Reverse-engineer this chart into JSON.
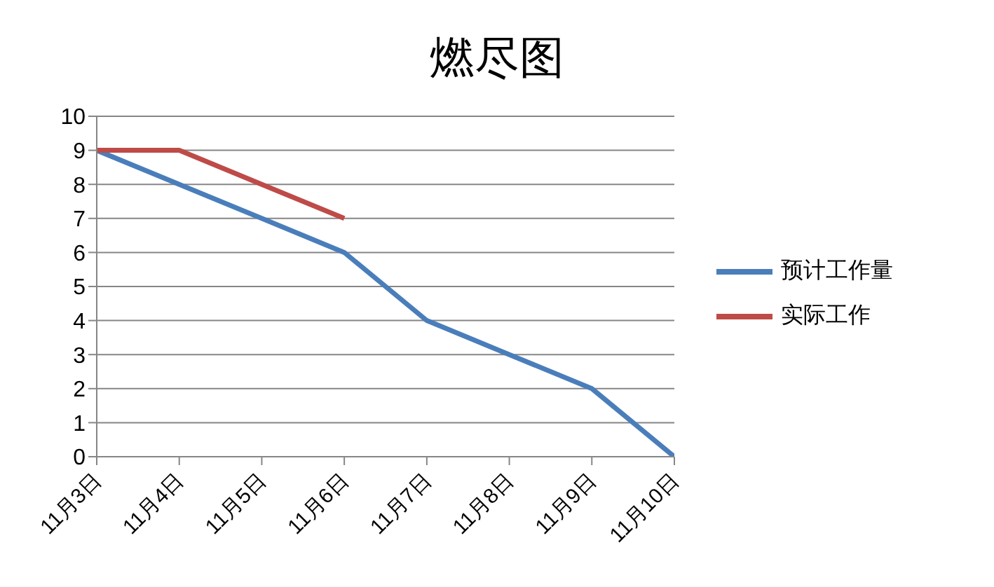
{
  "chart_data": {
    "type": "line",
    "title": "燃尽图",
    "categories": [
      "11月3日",
      "11月4日",
      "11月5日",
      "11月6日",
      "11月7日",
      "11月8日",
      "11月9日",
      "11月10日"
    ],
    "series": [
      {
        "name": "预计工作量",
        "color": "#4a7ebb",
        "values": [
          9,
          8,
          7,
          6,
          4,
          3,
          2,
          0
        ]
      },
      {
        "name": "实际工作",
        "color": "#be4b48",
        "values": [
          9,
          9,
          8,
          7,
          null,
          null,
          null,
          null
        ]
      }
    ],
    "ylim": [
      0,
      10
    ],
    "yticks": [
      0,
      1,
      2,
      3,
      4,
      5,
      6,
      7,
      8,
      9,
      10
    ],
    "grid": "y",
    "legend": "right"
  }
}
